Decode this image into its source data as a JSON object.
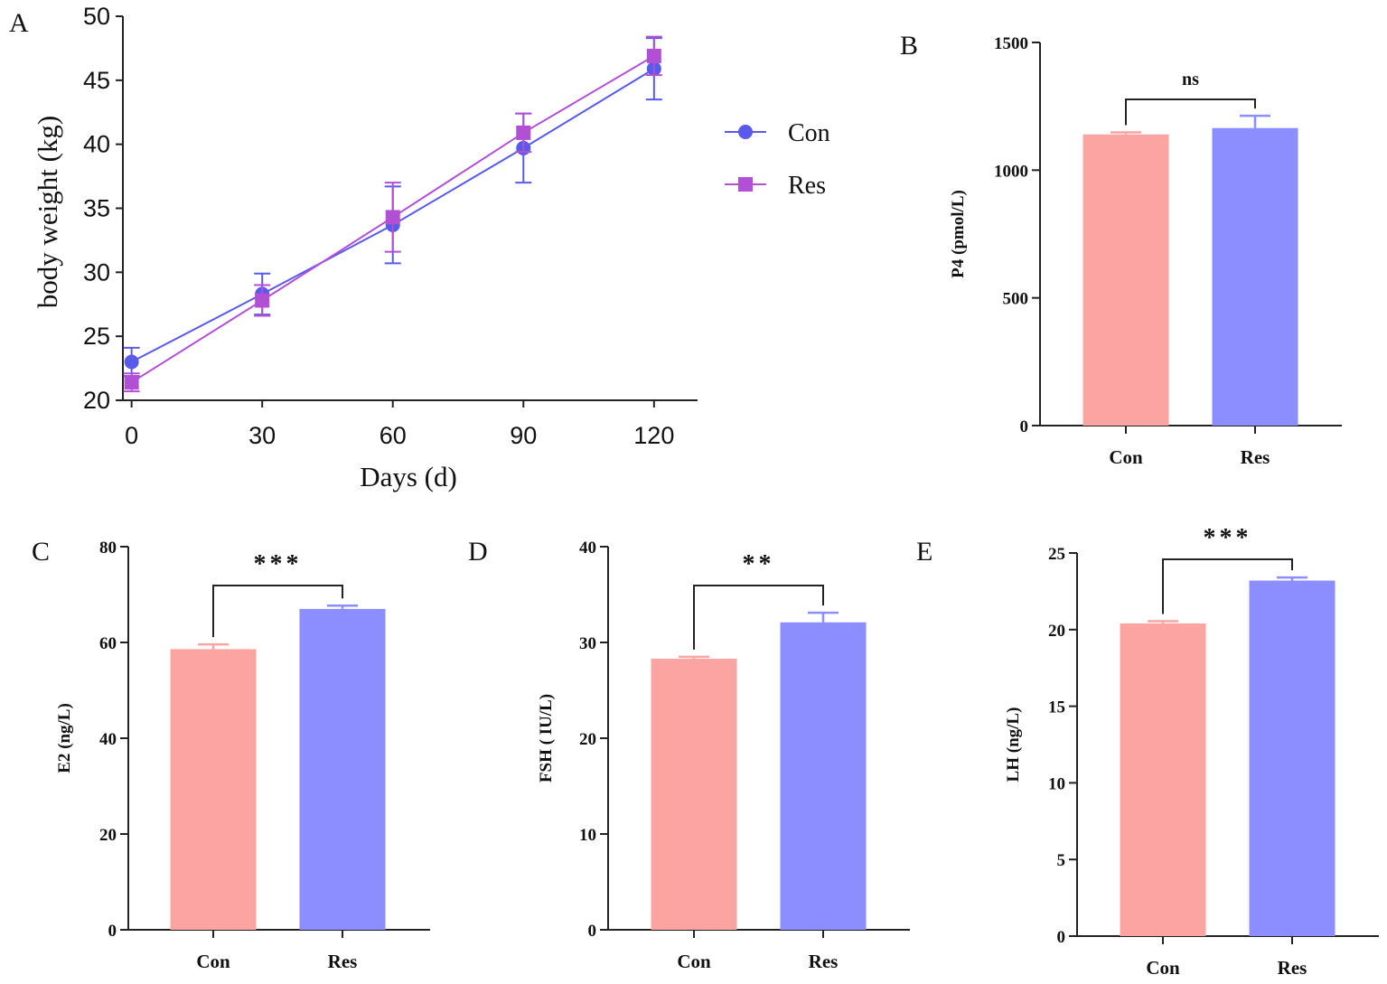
{
  "panel_labels": {
    "a": "A",
    "b": "B",
    "c": "C",
    "d": "D",
    "e": "E"
  },
  "colors": {
    "con": "#5959ea",
    "res": "#b150d4",
    "con_bar": "#fca4a2",
    "res_bar": "#8c8dfe",
    "axis": "#222222"
  },
  "chart_data": [
    {
      "panel": "A",
      "type": "line",
      "xlabel": "Days (d)",
      "ylabel": "body weight (kg)",
      "x": [
        0,
        30,
        60,
        90,
        120
      ],
      "xlim": [
        -2,
        130
      ],
      "ylim": [
        20,
        50
      ],
      "xticks": [
        0,
        30,
        60,
        90,
        120
      ],
      "yticks": [
        20,
        25,
        30,
        35,
        40,
        45,
        50
      ],
      "legend_position": "right",
      "series": [
        {
          "name": "Con",
          "marker": "circle",
          "values": [
            23.0,
            28.3,
            33.7,
            39.7,
            45.9
          ],
          "errors": [
            1.1,
            1.6,
            3.0,
            2.7,
            2.4
          ]
        },
        {
          "name": "Res",
          "marker": "square",
          "values": [
            21.4,
            27.8,
            34.3,
            40.9,
            46.9
          ],
          "errors": [
            0.7,
            1.2,
            2.7,
            1.5,
            1.5
          ]
        }
      ]
    },
    {
      "panel": "B",
      "type": "bar",
      "categories": [
        "Con",
        "Res"
      ],
      "values": [
        1140,
        1165
      ],
      "errors": [
        8,
        48
      ],
      "ylabel": "P4 (pmol/L)",
      "ylim": [
        0,
        1500
      ],
      "yticks": [
        0,
        500,
        1000,
        1500
      ],
      "significance": "ns"
    },
    {
      "panel": "C",
      "type": "bar",
      "categories": [
        "Con",
        "Res"
      ],
      "values": [
        58.6,
        67.0
      ],
      "errors": [
        1.0,
        0.7
      ],
      "ylabel": "E2 (ng/L)",
      "ylim": [
        0,
        80
      ],
      "yticks": [
        0,
        20,
        40,
        60,
        80
      ],
      "significance": "***"
    },
    {
      "panel": "D",
      "type": "bar",
      "categories": [
        "Con",
        "Res"
      ],
      "values": [
        28.3,
        32.1
      ],
      "errors": [
        0.2,
        1.0
      ],
      "ylabel": "FSH ( IU/L)",
      "ylim": [
        0,
        40
      ],
      "yticks": [
        0,
        10,
        20,
        30,
        40
      ],
      "significance": "**"
    },
    {
      "panel": "E",
      "type": "bar",
      "categories": [
        "Con",
        "Res"
      ],
      "values": [
        20.4,
        23.2
      ],
      "errors": [
        0.15,
        0.2
      ],
      "ylabel": "LH (ng/L)",
      "ylim": [
        0,
        25
      ],
      "yticks": [
        0,
        5,
        10,
        15,
        20,
        25
      ],
      "significance": "***"
    }
  ]
}
